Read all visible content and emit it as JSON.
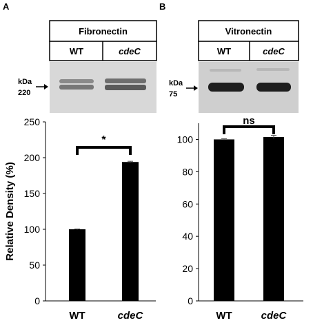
{
  "panels": [
    {
      "letter": "A",
      "protein": "Fibronectin",
      "lanes": [
        "WT",
        "cdeC"
      ],
      "marker_unit": "kDa",
      "marker_value": "220"
    },
    {
      "letter": "B",
      "protein": "Vitronectin",
      "lanes": [
        "WT",
        "cdeC"
      ],
      "marker_unit": "kDa",
      "marker_value": "75"
    }
  ],
  "chart_data": [
    {
      "type": "bar",
      "categories": [
        "WT",
        "cdeC"
      ],
      "values": [
        100,
        194
      ],
      "errors": [
        0.5,
        1
      ],
      "ylabel": "Relative Density (%)",
      "ylim": [
        0,
        250
      ],
      "yticks": [
        "0",
        "50",
        "100",
        "150",
        "200",
        "250"
      ],
      "significance": "*",
      "bar_color": "#000000",
      "grid": false
    },
    {
      "type": "bar",
      "categories": [
        "WT",
        "cdeC"
      ],
      "values": [
        100,
        101.5
      ],
      "errors": [
        0.4,
        1
      ],
      "ylabel": "",
      "ylim": [
        0,
        110
      ],
      "yticks": [
        "0",
        "20",
        "40",
        "60",
        "80",
        "100"
      ],
      "significance": "ns",
      "bar_color": "#000000",
      "grid": false
    }
  ]
}
